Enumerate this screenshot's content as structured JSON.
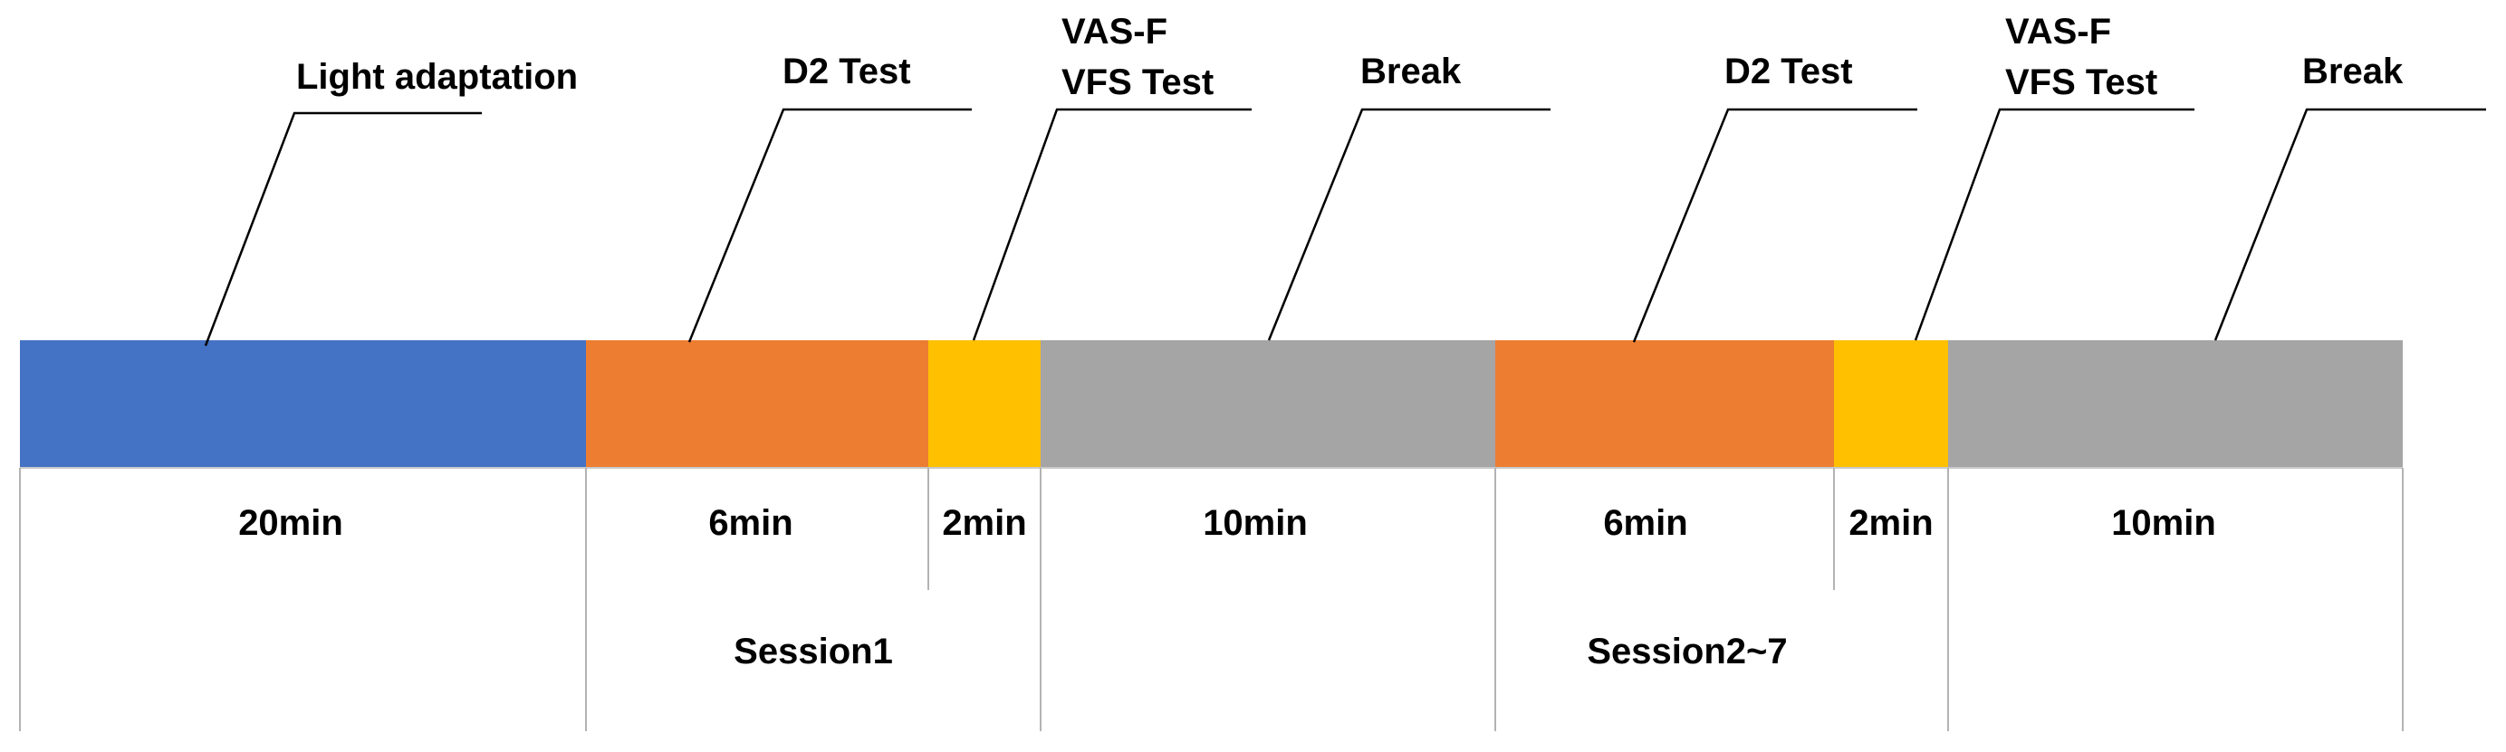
{
  "colors": {
    "light": "#4472C4",
    "test": "#ED7D31",
    "rating": "#FFC000",
    "break": "#A5A5A5",
    "line": "#000000",
    "divider": "#B3B3B3"
  },
  "segments": [
    {
      "id": "light-adaptation",
      "color": "#4472C4",
      "duration": "20min",
      "label_lines": [
        "Light adaptation"
      ]
    },
    {
      "id": "d2-test-1",
      "color": "#ED7D31",
      "duration": "6min",
      "label_lines": [
        "D2 Test"
      ]
    },
    {
      "id": "vas-vfs-1",
      "color": "#FFC000",
      "duration": "2min",
      "label_lines": [
        "VAS-F",
        "VFS Test"
      ]
    },
    {
      "id": "break-1",
      "color": "#A5A5A5",
      "duration": "10min",
      "label_lines": [
        "Break"
      ]
    },
    {
      "id": "d2-test-2",
      "color": "#ED7D31",
      "duration": "6min",
      "label_lines": [
        "D2 Test"
      ]
    },
    {
      "id": "vas-vfs-2",
      "color": "#FFC000",
      "duration": "2min",
      "label_lines": [
        "VAS-F",
        "VFS Test"
      ]
    },
    {
      "id": "break-2",
      "color": "#A5A5A5",
      "duration": "10min",
      "label_lines": [
        "Break"
      ]
    }
  ],
  "sessions": [
    "Session1",
    "Session2~7"
  ]
}
